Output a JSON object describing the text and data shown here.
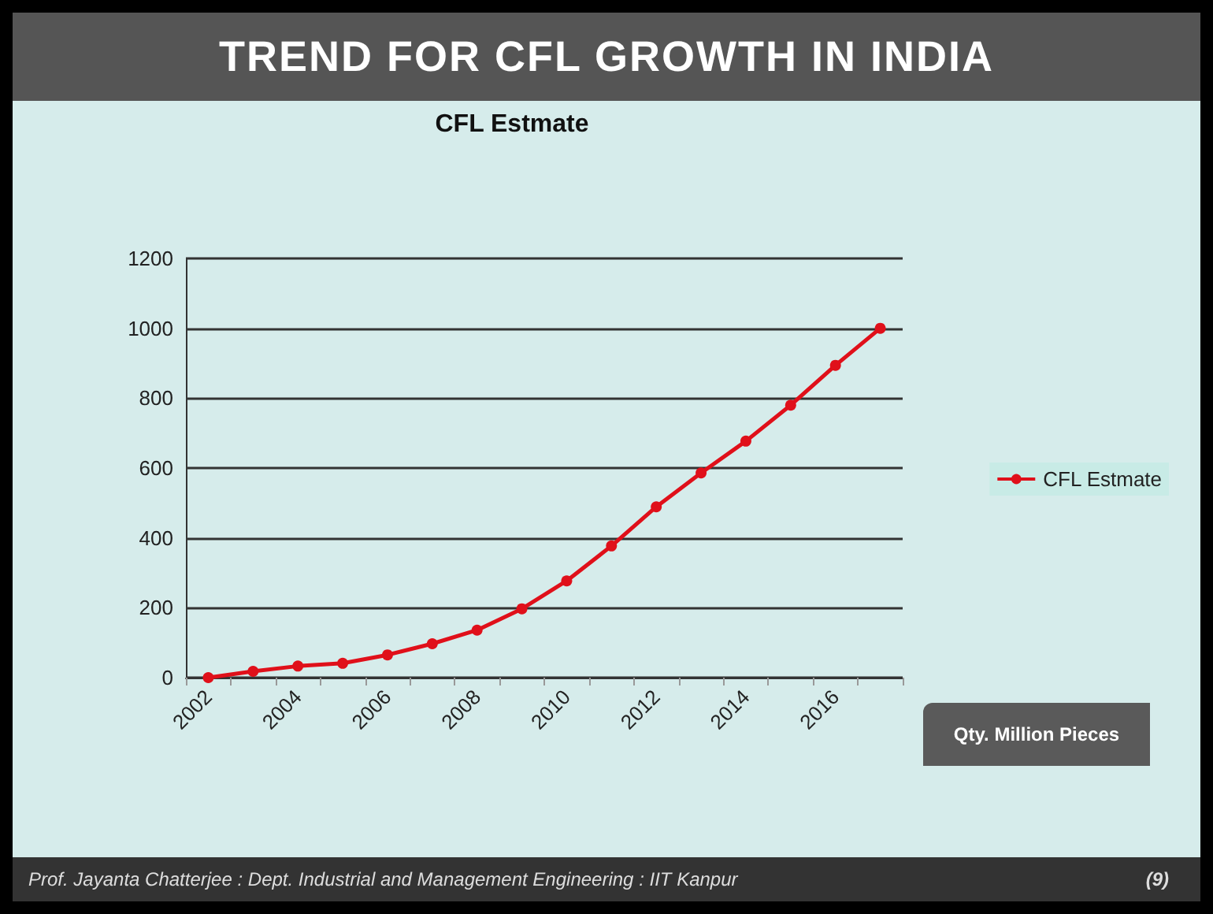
{
  "chart_data": {
    "type": "line",
    "title": "TREND FOR CFL GROWTH IN INDIA",
    "subtitle": "CFL Estmate",
    "categories": [
      "2002",
      null,
      "2004",
      null,
      "2006",
      null,
      "2008",
      null,
      "2010",
      null,
      "2012",
      null,
      "2014",
      null,
      "2016",
      null
    ],
    "series": [
      {
        "name": "CFL Estmate",
        "color": "#e0101a",
        "values": [
          0,
          18,
          33,
          41,
          65,
          97,
          136,
          197,
          277,
          377,
          489,
          586,
          677,
          780,
          894,
          1000
        ]
      }
    ],
    "ylim": [
      0,
      1200
    ],
    "yticks": [
      0,
      200,
      400,
      600,
      800,
      1000,
      1200
    ],
    "grid": "y",
    "legend": "right",
    "marker": "circle",
    "line_style": "solid",
    "annotations": [
      "Qty. Million Pieces",
      "Prof. Jayanta Chatterjee : Dept. Industrial and Management Engineering : IIT Kanpur",
      "(9)"
    ]
  }
}
